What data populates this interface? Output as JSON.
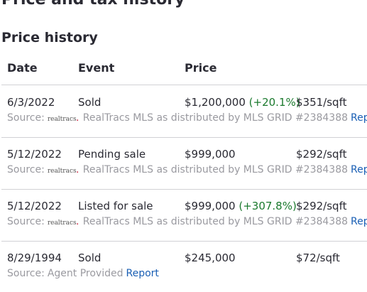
{
  "section_title": "Price and tax history",
  "price_history": {
    "title": "Price history",
    "headers": {
      "date": "Date",
      "event": "Event",
      "price": "Price"
    },
    "rows": [
      {
        "date": "6/3/2022",
        "event": "Sold",
        "price": "$1,200,000",
        "change": "(+20.1%)",
        "price_per_sqft": "$351/sqft",
        "source_label": "Source:",
        "logo_text": "realtracs",
        "source_text": "RealTracs MLS as distributed by MLS GRID #2384388",
        "report": "Report"
      },
      {
        "date": "5/12/2022",
        "event": "Pending sale",
        "price": "$999,000",
        "change": "",
        "price_per_sqft": "$292/sqft",
        "source_label": "Source:",
        "logo_text": "realtracs",
        "source_text": "RealTracs MLS as distributed by MLS GRID #2384388",
        "report": "Report"
      },
      {
        "date": "5/12/2022",
        "event": "Listed for sale",
        "price": "$999,000",
        "change": "(+307.8%)",
        "price_per_sqft": "$292/sqft",
        "source_label": "Source:",
        "logo_text": "realtracs",
        "source_text": "RealTracs MLS as distributed by MLS GRID #2384388",
        "report": "Report"
      },
      {
        "date": "8/29/1994",
        "event": "Sold",
        "price": "$245,000",
        "change": "",
        "price_per_sqft": "$72/sqft",
        "source_label": "Source:",
        "source_text": "Agent Provided",
        "report": "Report"
      }
    ]
  },
  "colors": {
    "positive_change": "#1b7a2e",
    "link": "#1a5fb4",
    "muted": "#9a9aa0"
  }
}
